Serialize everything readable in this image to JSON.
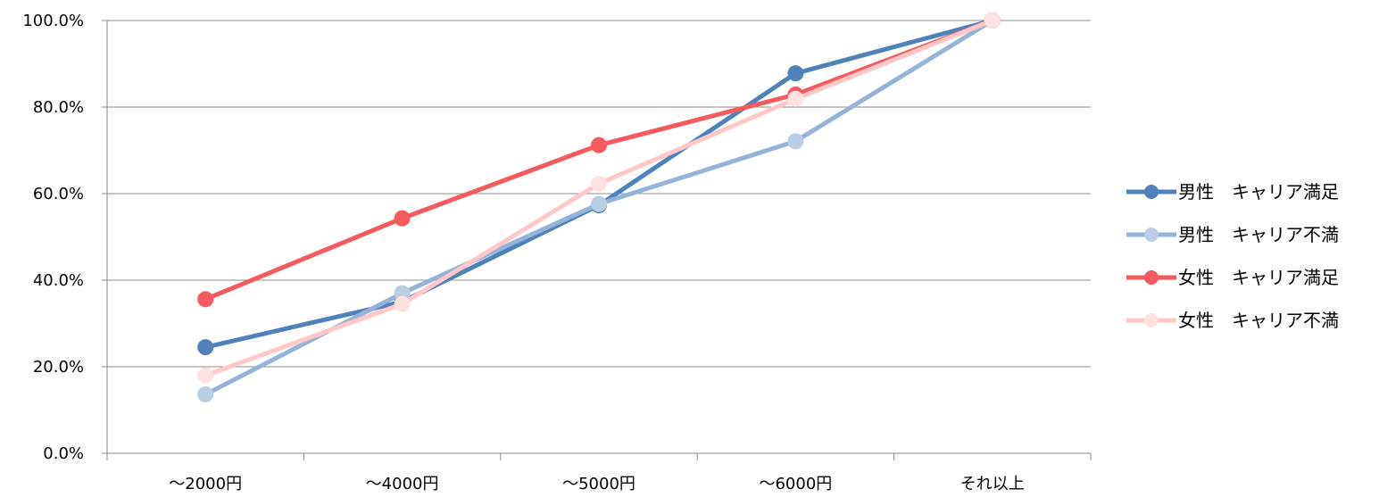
{
  "chart_data": {
    "type": "line",
    "categories": [
      "〜2000円",
      "〜4000円",
      "〜5000円",
      "〜6000円",
      "それ以上"
    ],
    "ylim": [
      0,
      100
    ],
    "yticks": [
      "0.0%",
      "20.0%",
      "40.0%",
      "60.0%",
      "80.0%",
      "100.0%"
    ],
    "grid": true,
    "legend_position": "right",
    "series": [
      {
        "name": "男性　キャリア満足",
        "color": "#4F81BD",
        "values": [
          24.5,
          35.0,
          57.3,
          87.8,
          100.0
        ]
      },
      {
        "name": "男性　キャリア不満",
        "color": "#95B3D7",
        "marker_color": "#B9CDE5",
        "values": [
          13.6,
          37.0,
          57.6,
          72.1,
          100.0
        ]
      },
      {
        "name": "女性　キャリア満足",
        "color": "#F55A5E",
        "values": [
          35.6,
          54.3,
          71.2,
          82.9,
          100.0
        ]
      },
      {
        "name": "女性　キャリア不満",
        "color": "#FFC7C8",
        "marker_color": "#FFE1E1",
        "values": [
          18.0,
          34.5,
          62.3,
          81.9,
          100.0
        ]
      }
    ]
  }
}
